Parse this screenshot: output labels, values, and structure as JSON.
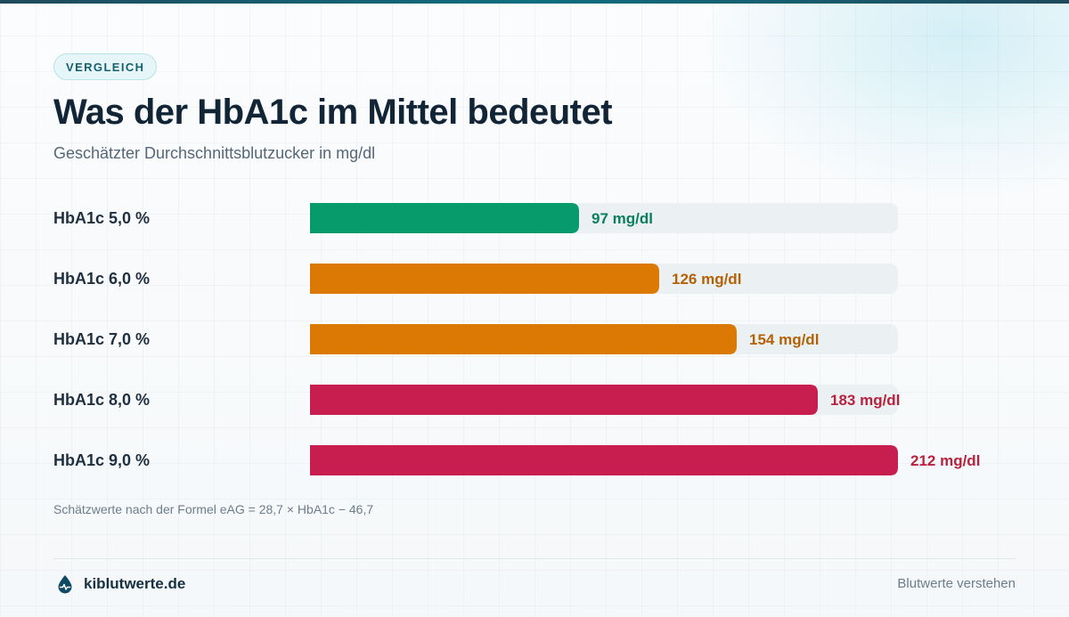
{
  "badge": "VERGLEICH",
  "title": "Was der HbA1c im Mittel bedeutet",
  "subtitle": "Geschätzter Durchschnittsblutzucker in mg/dl",
  "note": "Schätzwerte nach der Formel eAG = 28,7 × HbA1c − 46,7",
  "footer": {
    "brand": "kiblutwerte.de",
    "brand_icon": "blood-drop-icon",
    "tagline": "Blutwerte verstehen"
  },
  "colors": {
    "green": "#079a6b",
    "orange": "#dc7905",
    "red": "#c81e4f",
    "green_text": "#0a7f58",
    "orange_text": "#b36206",
    "red_text": "#b8223f",
    "track": "#ebf0f3"
  },
  "chart_data": {
    "type": "bar",
    "orientation": "horizontal",
    "categories": [
      "HbA1c 5,0 %",
      "HbA1c 6,0 %",
      "HbA1c 7,0 %",
      "HbA1c 8,0 %",
      "HbA1c 9,0 %"
    ],
    "values": [
      97,
      126,
      154,
      183,
      212
    ],
    "value_labels": [
      "97 mg/dl",
      "126 mg/dl",
      "154 mg/dl",
      "183 mg/dl",
      "212 mg/dl"
    ],
    "bar_colors": [
      "green",
      "orange",
      "orange",
      "red",
      "red"
    ],
    "unit": "mg/dl",
    "xlim": [
      0,
      212
    ],
    "title": "Was der HbA1c im Mittel bedeutet",
    "subtitle": "Geschätzter Durchschnittsblutzucker in mg/dl",
    "grid": false,
    "legend": "none"
  }
}
